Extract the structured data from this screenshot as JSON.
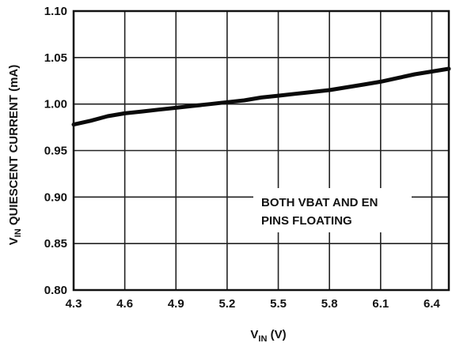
{
  "chart_data": {
    "type": "line",
    "title": "",
    "xlabel": {
      "main": "V",
      "sub": "IN",
      "rest": " (V)"
    },
    "ylabel": {
      "main": "V",
      "sub": "IN",
      "rest": " QUIESCENT CURRENT (mA)"
    },
    "xlim": [
      4.3,
      6.5
    ],
    "ylim": [
      0.8,
      1.1
    ],
    "x_ticks": [
      "4.3",
      "4.6",
      "4.9",
      "5.2",
      "5.5",
      "5.8",
      "6.1",
      "6.4"
    ],
    "y_ticks": [
      "0.80",
      "0.85",
      "0.90",
      "0.95",
      "1.00",
      "1.05",
      "1.10"
    ],
    "grid": true,
    "annotation": [
      "BOTH VBAT AND EN",
      "PINS FLOATING"
    ],
    "series": [
      {
        "x": [
          4.3,
          4.4,
          4.5,
          4.6,
          4.7,
          4.8,
          4.9,
          5.0,
          5.1,
          5.2,
          5.3,
          5.4,
          5.5,
          5.6,
          5.7,
          5.8,
          5.9,
          6.0,
          6.1,
          6.2,
          6.3,
          6.4,
          6.5
        ],
        "y": [
          0.978,
          0.982,
          0.987,
          0.99,
          0.992,
          0.994,
          0.996,
          0.998,
          1.0,
          1.002,
          1.004,
          1.007,
          1.009,
          1.011,
          1.013,
          1.015,
          1.018,
          1.021,
          1.024,
          1.028,
          1.032,
          1.035,
          1.038
        ]
      }
    ]
  }
}
